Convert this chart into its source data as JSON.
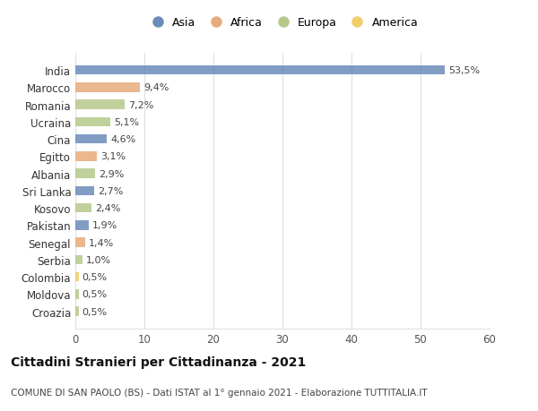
{
  "countries": [
    "India",
    "Marocco",
    "Romania",
    "Ucraina",
    "Cina",
    "Egitto",
    "Albania",
    "Sri Lanka",
    "Kosovo",
    "Pakistan",
    "Senegal",
    "Serbia",
    "Colombia",
    "Moldova",
    "Croazia"
  ],
  "values": [
    53.5,
    9.4,
    7.2,
    5.1,
    4.6,
    3.1,
    2.9,
    2.7,
    2.4,
    1.9,
    1.4,
    1.0,
    0.5,
    0.5,
    0.5
  ],
  "labels": [
    "53,5%",
    "9,4%",
    "7,2%",
    "5,1%",
    "4,6%",
    "3,1%",
    "2,9%",
    "2,7%",
    "2,4%",
    "1,9%",
    "1,4%",
    "1,0%",
    "0,5%",
    "0,5%",
    "0,5%"
  ],
  "continents": [
    "Asia",
    "Africa",
    "Europa",
    "Europa",
    "Asia",
    "Africa",
    "Europa",
    "Asia",
    "Europa",
    "Asia",
    "Africa",
    "Europa",
    "America",
    "Europa",
    "Europa"
  ],
  "continent_colors": {
    "Asia": "#6b8cba",
    "Africa": "#e8ab7c",
    "Europa": "#b5c98a",
    "America": "#f0cf6a"
  },
  "legend_order": [
    "Asia",
    "Africa",
    "Europa",
    "America"
  ],
  "title": "Cittadini Stranieri per Cittadinanza - 2021",
  "subtitle": "COMUNE DI SAN PAOLO (BS) - Dati ISTAT al 1° gennaio 2021 - Elaborazione TUTTITALIA.IT",
  "xlim": [
    0,
    60
  ],
  "xticks": [
    0,
    10,
    20,
    30,
    40,
    50,
    60
  ],
  "bg_color": "#ffffff",
  "grid_color": "#e0e0e0",
  "bar_height": 0.55
}
